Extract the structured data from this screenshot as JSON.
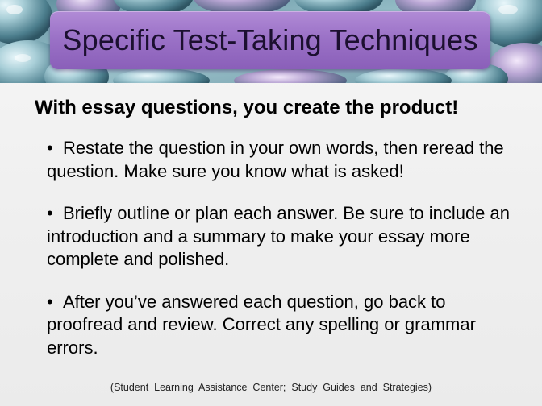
{
  "slide": {
    "title": "Specific Test-Taking Techniques",
    "subtitle": "With essay questions, you create the product!",
    "bullets": [
      {
        "marker": "•",
        "text": "Restate the question in your own words, then reread the question.  Make sure you know what is asked!"
      },
      {
        "marker": "•",
        "text": "Briefly outline or plan each answer.  Be sure to include an introduction and a summary to make your essay more complete and polished."
      },
      {
        "marker": "•",
        "text": "After you’ve answered each question, go back to proofread and review.  Correct any spelling or grammar errors."
      }
    ],
    "citation": "(Student  Learning  Assistance  Center;  Study  Guides  and  Strategies)"
  },
  "colors": {
    "title_box": "#9b72c7",
    "header_background": "#8fb2bd",
    "slide_background": "#f2f2f2"
  }
}
